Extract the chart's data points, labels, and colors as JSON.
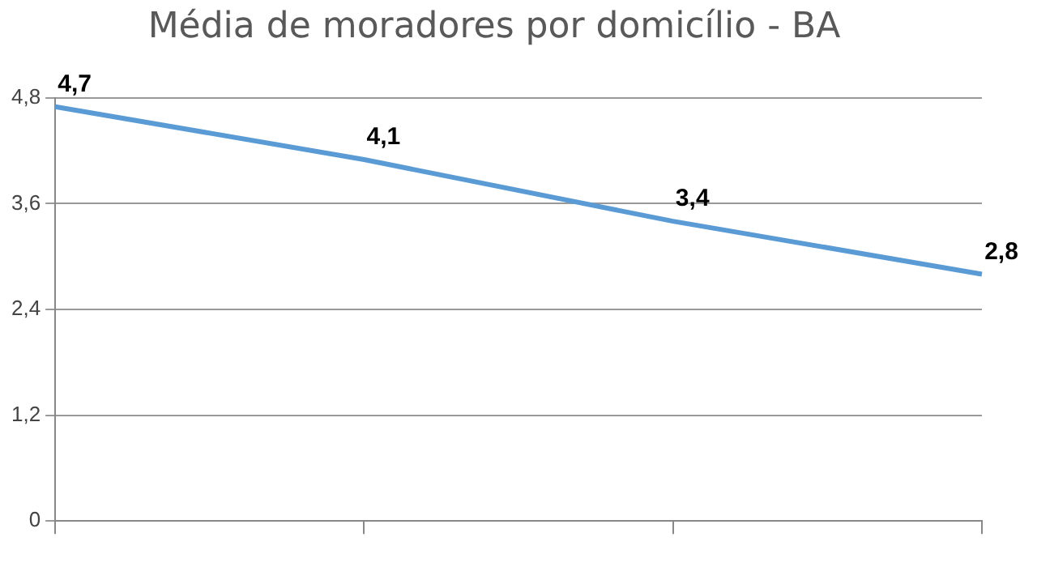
{
  "chart_data": {
    "type": "line",
    "title": "Média de moradores por domicílio - BA",
    "categories": [
      null,
      null,
      null,
      null
    ],
    "series": [
      {
        "color": "#5b9bd5",
        "values": [
          4.7,
          4.1,
          3.4,
          2.8
        ],
        "value_labels": [
          "4,7",
          "4,1",
          "3,4",
          "2,8"
        ]
      }
    ],
    "ylim": [
      0,
      4.8
    ],
    "yticks": [
      {
        "value": 0,
        "label": "0"
      },
      {
        "value": 1.2,
        "label": "1,2"
      },
      {
        "value": 2.4,
        "label": "2,4"
      },
      {
        "value": 3.6,
        "label": "3,6"
      },
      {
        "value": 4.8,
        "label": "4,8"
      }
    ],
    "grid": "y",
    "legend": false,
    "marker": "none",
    "line_style": "solid"
  }
}
